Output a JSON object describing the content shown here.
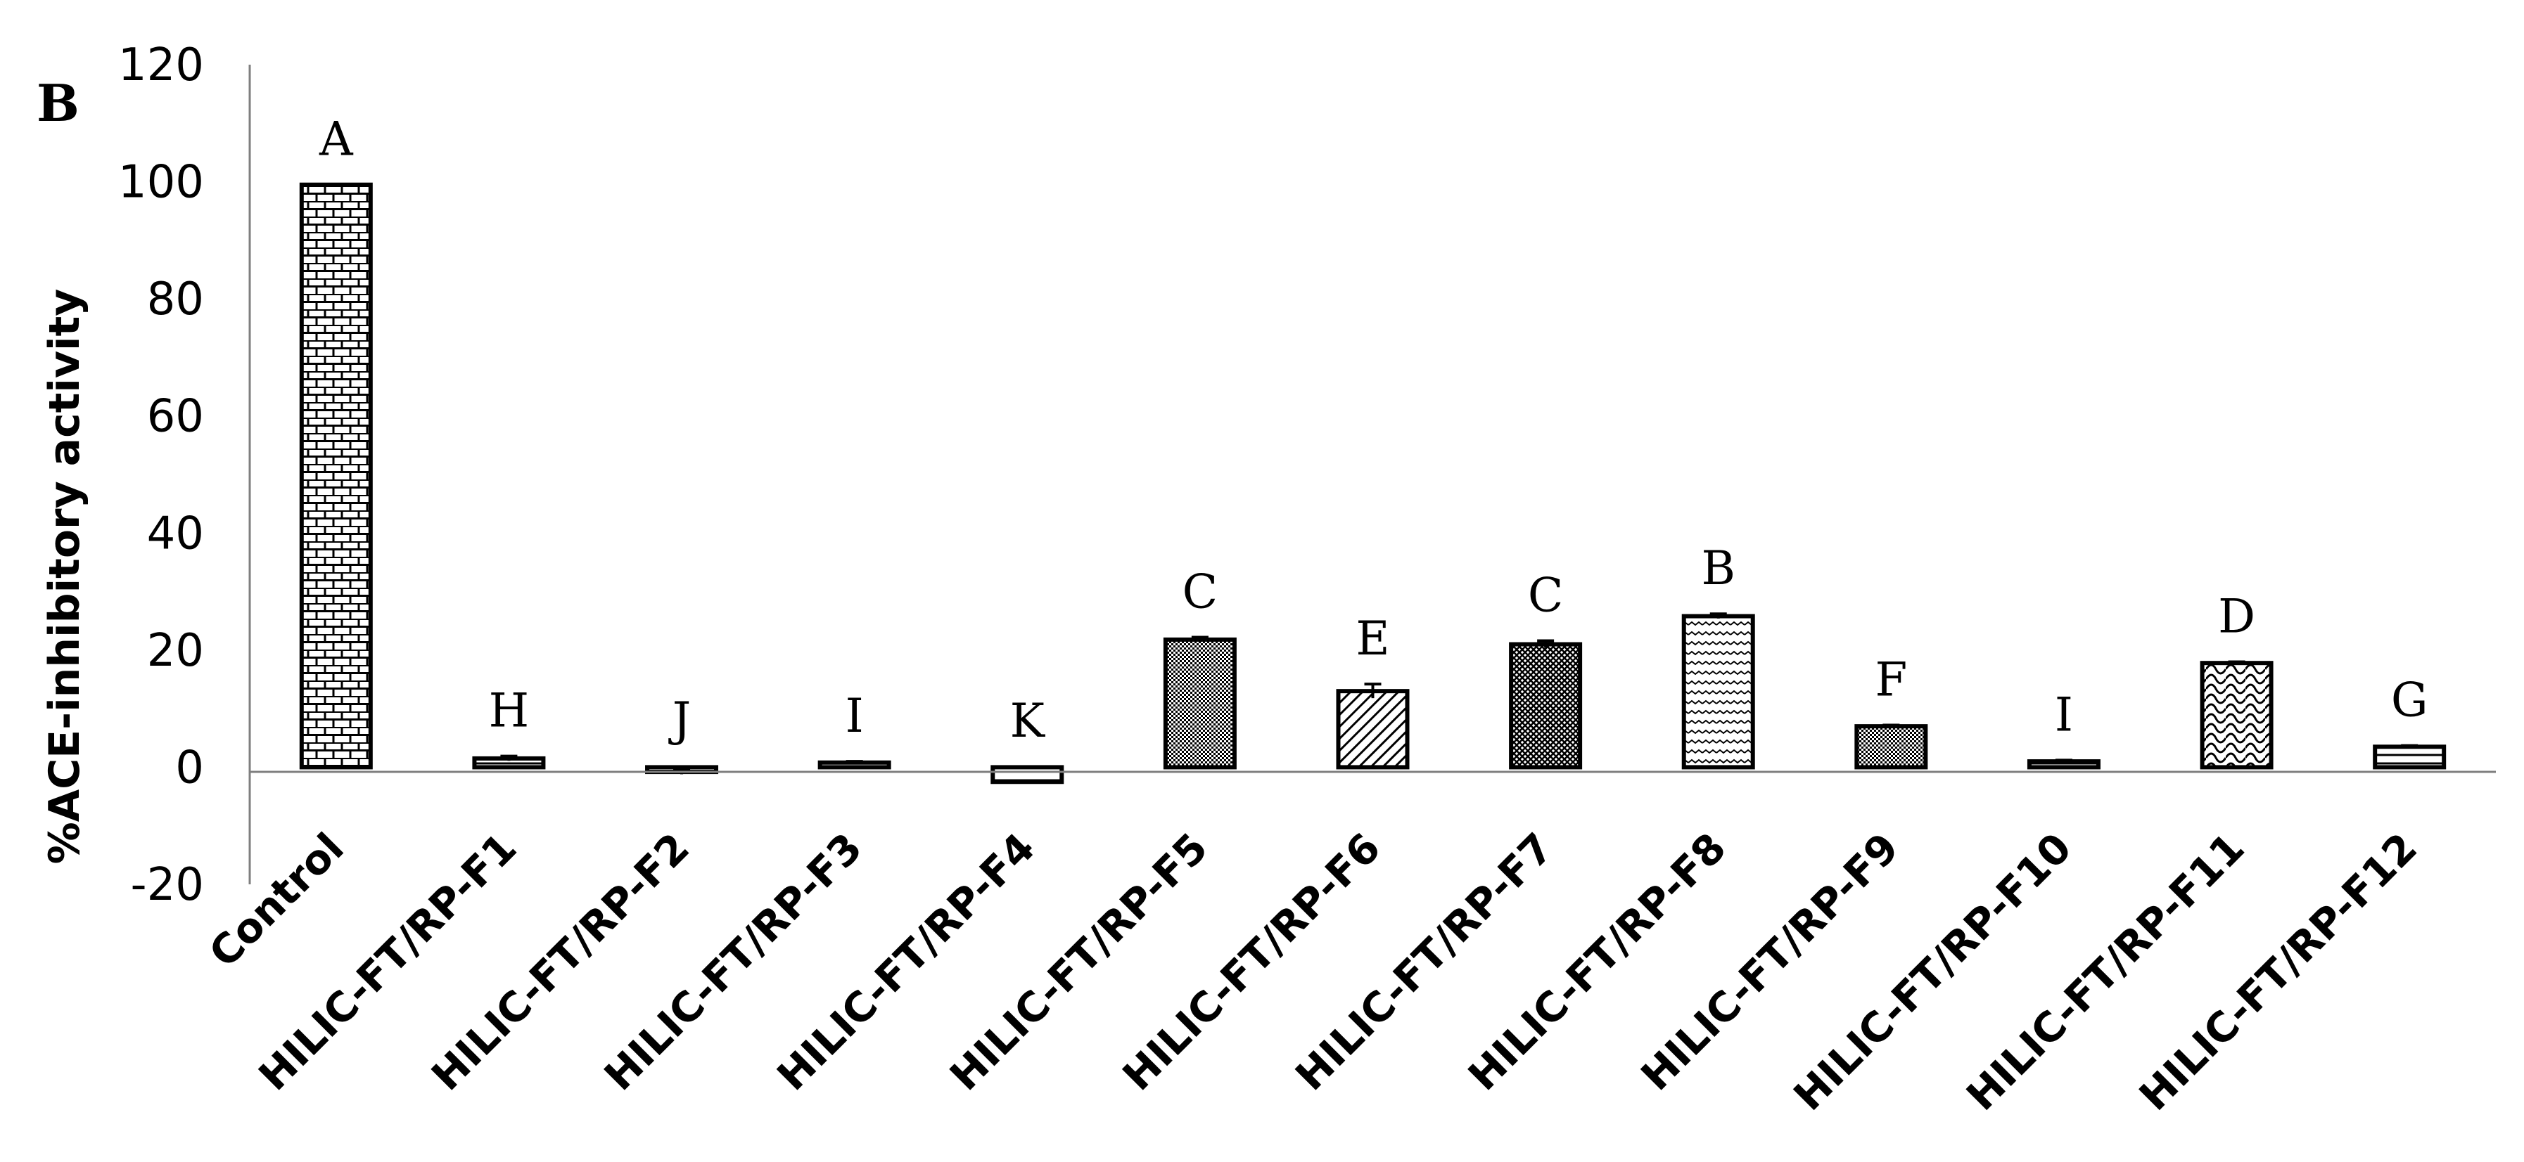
{
  "chart_data": {
    "type": "bar",
    "panel_label": "B",
    "ylabel": "%ACE-inhibitory activity",
    "ylim": [
      -20,
      120
    ],
    "yticks": [
      -20,
      0,
      20,
      40,
      60,
      80,
      100,
      120
    ],
    "grid": false,
    "categories": [
      "Control",
      "HILIC-FT/RP-F1",
      "HILIC-FT/RP-F2",
      "HILIC-FT/RP-F3",
      "HILIC-FT/RP-F4",
      "HILIC-FT/RP-F5",
      "HILIC-FT/RP-F6",
      "HILIC-FT/RP-F7",
      "HILIC-FT/RP-F8",
      "HILIC-FT/RP-F9",
      "HILIC-FT/RP-F10",
      "HILIC-FT/RP-F11",
      "HILIC-FT/RP-F12"
    ],
    "values": [
      99.5,
      1.5,
      -0.8,
      0.8,
      -2.5,
      21.8,
      13,
      21,
      25.8,
      7,
      1,
      17.8,
      3.5
    ],
    "errors": [
      0,
      0.4,
      0.4,
      0.2,
      0.2,
      0.4,
      1.2,
      0.6,
      0.4,
      0.2,
      0.2,
      0.2,
      0.2
    ],
    "significance_letters": [
      "A",
      "H",
      "J",
      "I",
      "K",
      "C",
      "E",
      "C",
      "B",
      "F",
      "I",
      "D",
      "G"
    ],
    "patterns": [
      "bricks",
      "horizontal",
      "horizontal",
      "horizontal",
      "horizontal",
      "dense-dots",
      "diagonal",
      "crosshatch",
      "wave",
      "dense-dots",
      "horizontal",
      "scales",
      "horizontal"
    ]
  }
}
